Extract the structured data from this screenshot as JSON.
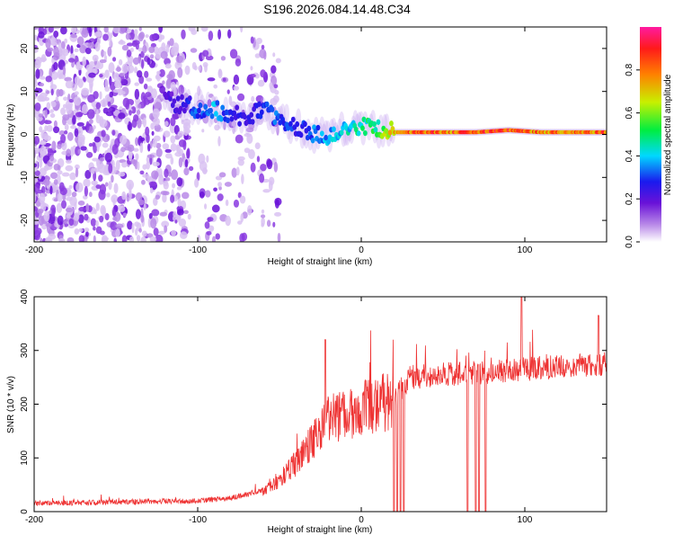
{
  "title": "S196.2026.084.14.48.C34",
  "chart_data": [
    {
      "type": "heatmap",
      "name": "spectrogram",
      "xlabel": "Height of straight line (km)",
      "ylabel": "Frequency (Hz)",
      "xlim": [
        -200,
        150
      ],
      "ylim": [
        -25,
        25
      ],
      "xticks": [
        -200,
        -100,
        0,
        100
      ],
      "xtick_labels": [
        "-200",
        "-100",
        "0",
        "100"
      ],
      "yticks": [
        -20,
        -10,
        0,
        10,
        20
      ],
      "ytick_labels": [
        "-20",
        "-10",
        "0",
        "10",
        "20"
      ],
      "colorbar": {
        "label": "Normalized spectral amplitude",
        "range": [
          0,
          1
        ],
        "ticks": [
          0.0,
          0.2,
          0.4,
          0.6,
          0.8
        ],
        "tick_labels": [
          "0.0",
          "0.2",
          "0.4",
          "0.6",
          "0.8"
        ]
      },
      "ridge": {
        "x": [
          -120,
          -110,
          -100,
          -90,
          -80,
          -70,
          -60,
          -50,
          -40,
          -30,
          -20,
          -10,
          0,
          10,
          20,
          30,
          50,
          70,
          90,
          110,
          130,
          150
        ],
        "y": [
          8,
          7,
          6,
          6,
          5,
          4,
          6,
          3,
          2,
          0,
          0,
          1,
          2,
          1,
          0.5,
          0.5,
          0.5,
          0.5,
          1,
          0.5,
          0.5,
          0.5
        ],
        "amplitude": [
          0.2,
          0.25,
          0.35,
          0.4,
          0.3,
          0.25,
          0.3,
          0.35,
          0.3,
          0.35,
          0.4,
          0.45,
          0.5,
          0.55,
          0.8,
          0.9,
          0.9,
          0.9,
          0.95,
          0.85,
          0.9,
          0.9
        ]
      }
    },
    {
      "type": "line",
      "name": "snr",
      "xlabel": "Height of straight line (km)",
      "ylabel": "SNR (10 * v/v)",
      "xlim": [
        -200,
        150
      ],
      "ylim": [
        0,
        400
      ],
      "xticks": [
        -200,
        -100,
        0,
        100
      ],
      "xtick_labels": [
        "-200",
        "-100",
        "0",
        "100"
      ],
      "yticks": [
        0,
        100,
        200,
        300,
        400
      ],
      "ytick_labels": [
        "0",
        "100",
        "200",
        "300",
        "400"
      ],
      "color": "#ee3333",
      "envelope": {
        "x": [
          -200,
          -150,
          -100,
          -80,
          -60,
          -50,
          -40,
          -30,
          -20,
          -10,
          0,
          10,
          20,
          30,
          50,
          80,
          100,
          120,
          150
        ],
        "y": [
          15,
          18,
          20,
          25,
          40,
          60,
          90,
          130,
          170,
          185,
          190,
          200,
          210,
          250,
          255,
          260,
          265,
          270,
          275
        ]
      },
      "dropouts_x": [
        20,
        22,
        24,
        26,
        65,
        70,
        72,
        76,
        98
      ],
      "peaks": [
        {
          "x": -22,
          "y": 320
        },
        {
          "x": 98,
          "y": 400
        },
        {
          "x": 145,
          "y": 365
        }
      ]
    }
  ]
}
